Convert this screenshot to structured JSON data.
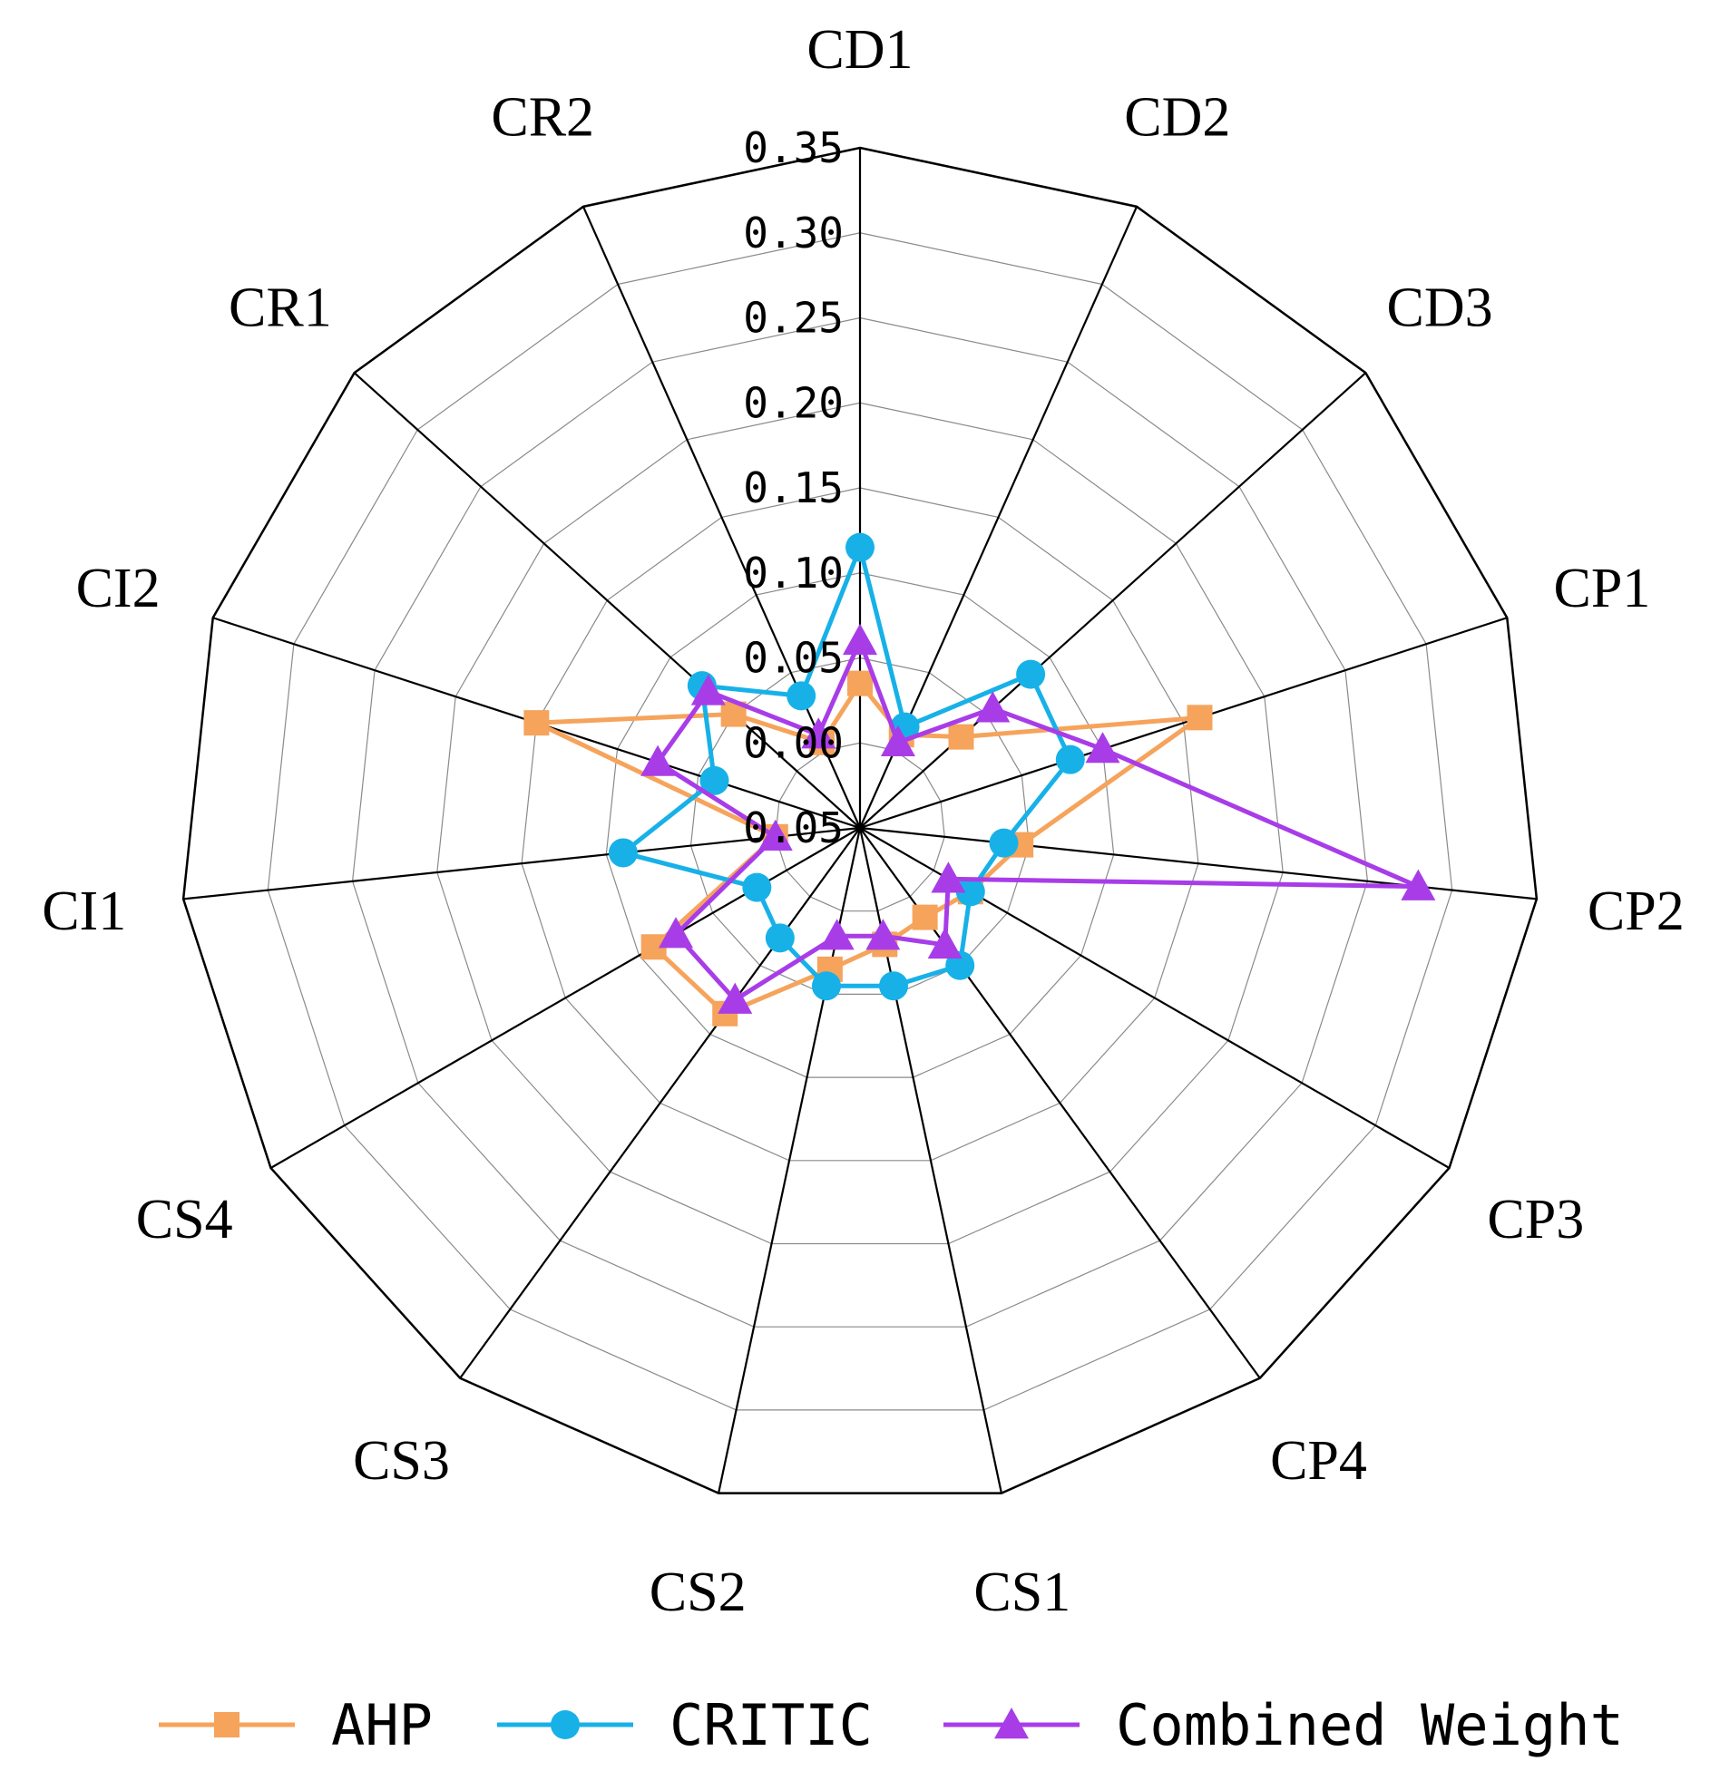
{
  "chart_data": {
    "type": "radar",
    "title": "",
    "categories": [
      "CD1",
      "CD2",
      "CD3",
      "CP1",
      "CP2",
      "CP3",
      "CP4",
      "CS1",
      "CS2",
      "CS3",
      "CS4",
      "CI1",
      "CI2",
      "CR1",
      "CR2"
    ],
    "ylim": [
      -0.05,
      0.35
    ],
    "ticks": [
      "0.35",
      "0.30",
      "0.25",
      "0.20",
      "0.15",
      "0.10",
      "0.05",
      "0.00",
      "0.05"
    ],
    "tick_values": [
      0.35,
      0.3,
      0.25,
      0.2,
      0.15,
      0.1,
      0.05,
      0.0,
      -0.05
    ],
    "series": [
      {
        "name": "AHP",
        "color": "#f6a35c",
        "marker": "square",
        "values": [
          0.035,
          0.01,
          0.03,
          0.16,
          0.045,
          0.025,
          0.015,
          0.02,
          0.035,
          0.085,
          0.09,
          0.0,
          0.15,
          0.05,
          0.005
        ]
      },
      {
        "name": "CRITIC",
        "color": "#17b1e8",
        "marker": "circle",
        "values": [
          0.115,
          0.015,
          0.085,
          0.08,
          0.035,
          0.025,
          0.05,
          0.045,
          0.045,
          0.03,
          0.02,
          0.09,
          0.04,
          0.075,
          0.035
        ]
      },
      {
        "name": "Combined Weight",
        "color": "#a83de8",
        "marker": "triangle",
        "values": [
          0.06,
          0.005,
          0.055,
          0.1,
          0.28,
          0.01,
          0.035,
          0.015,
          0.015,
          0.075,
          0.075,
          0.0,
          0.075,
          0.07,
          0.01
        ]
      }
    ],
    "legend": {
      "position": "bottom",
      "entries": [
        "AHP",
        "CRITIC",
        "Combined Weight"
      ]
    },
    "grid": true
  }
}
